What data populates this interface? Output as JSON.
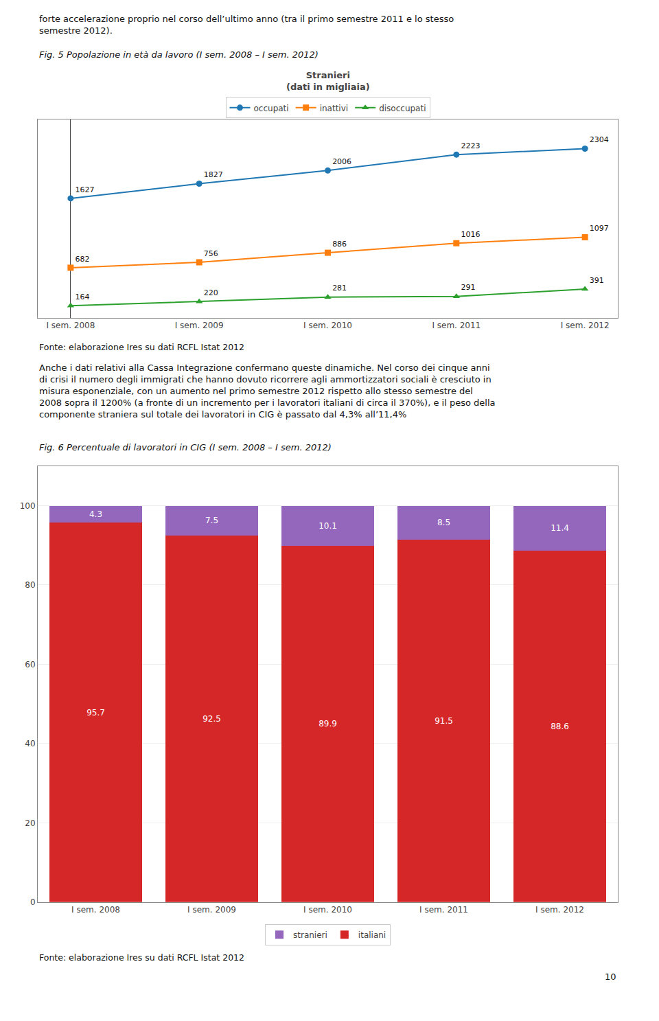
{
  "chart_data": [
    {
      "type": "line",
      "title": "Stranieri",
      "subtitle": "(dati in migliaia)",
      "categories": [
        "I sem. 2008",
        "I sem. 2009",
        "I sem. 2010",
        "I sem. 2011",
        "I sem. 2012"
      ],
      "series": [
        {
          "name": "occupati",
          "marker": "circle",
          "values": [
            1627,
            1827,
            2006,
            2223,
            2304
          ]
        },
        {
          "name": "inattivi",
          "marker": "square",
          "values": [
            682,
            756,
            886,
            1016,
            1097
          ]
        },
        {
          "name": "disoccupati",
          "marker": "triangle-up",
          "values": [
            164,
            220,
            281,
            291,
            391
          ]
        }
      ],
      "ylim": [
        0,
        2700
      ],
      "grid": false,
      "legend": "upper center",
      "data_labels": true,
      "tick_labels": "x",
      "annotations": [
        "forte accelerazione proprio nel corso dell’ultimo anno (tra il primo semestre 2011 e lo stesso\nsemestre 2012).",
        "Fig. 5 Popolazione in età da lavoro (I sem. 2008 – I sem. 2012)",
        "Fonte: elaborazione Ires su dati RCFL Istat 2012"
      ]
    },
    {
      "type": "bar",
      "stacked": true,
      "categories": [
        "I sem. 2008",
        "I sem. 2009",
        "I sem. 2010",
        "I sem. 2011",
        "I sem. 2012"
      ],
      "series": [
        {
          "name": "italiani",
          "values": [
            95.7,
            92.5,
            89.9,
            91.5,
            88.6
          ]
        },
        {
          "name": "stranieri",
          "values": [
            4.3,
            7.5,
            10.1,
            8.5,
            11.4
          ]
        }
      ],
      "ylim": [
        0,
        110
      ],
      "yticks": [
        0,
        20,
        40,
        60,
        80,
        100
      ],
      "grid": true,
      "legend": "lower center",
      "data_labels": true,
      "annotations": [
        "Anche i dati relativi alla Cassa Integrazione confermano queste dinamiche. Nel corso dei cinque anni\ndi crisi il numero degli immigrati che hanno dovuto ricorrere agli ammortizzatori sociali è cresciuto in\nmisura esponenziale, con un aumento nel primo semestre 2012 rispetto allo stesso semestre del\n2008 sopra il 1200% (a fronte di un incremento per i lavoratori italiani di circa il 370%), e il peso della\ncomponente straniera sul totale dei lavoratori in CIG è passato dal 4,3% all’11,4%",
        "Fig. 6 Percentuale di lavoratori in CIG (I sem. 2008 – I sem. 2012)",
        "Fonte: elaborazione Ires su dati RCFL Istat 2012",
        "10"
      ]
    }
  ]
}
